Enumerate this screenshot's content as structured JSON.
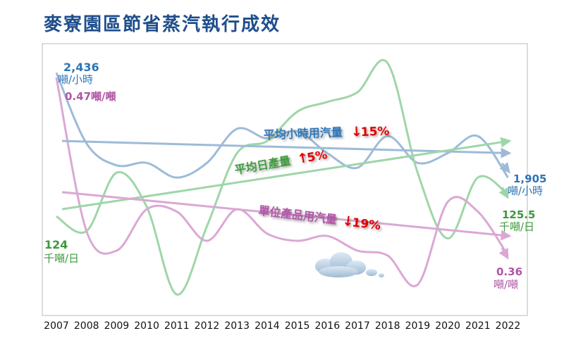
{
  "title": "麥寮園區節省蒸汽執行成效",
  "colors": {
    "blue": "#2e75b6",
    "blue_line": "#9dbbd8",
    "green": "#3c9a3c",
    "green_line": "#9ed6a9",
    "purple": "#b055a5",
    "purple_line": "#dba8d4",
    "red": "#e00000"
  },
  "chart_data": {
    "type": "line",
    "categories": [
      "2007",
      "2008",
      "2009",
      "2010",
      "2011",
      "2012",
      "2013",
      "2014",
      "2015",
      "2016",
      "2017",
      "2018",
      "2019",
      "2020",
      "2021",
      "2022"
    ],
    "y_range": [
      0,
      1
    ],
    "grid": false,
    "legend": "none",
    "y_axis_labels_shown": false,
    "series": [
      {
        "key": "steam_per_hour",
        "color": "#9dbbd8",
        "values": [
          0.95,
          0.66,
          0.57,
          0.58,
          0.52,
          0.58,
          0.72,
          0.68,
          0.71,
          0.62,
          0.56,
          0.69,
          0.58,
          0.62,
          0.69,
          0.52
        ]
      },
      {
        "key": "daily_output",
        "color": "#9ed6a9",
        "values": [
          0.36,
          0.3,
          0.54,
          0.4,
          0.04,
          0.32,
          0.62,
          0.67,
          0.79,
          0.83,
          0.87,
          0.99,
          0.54,
          0.27,
          0.52,
          0.45
        ]
      },
      {
        "key": "steam_per_product",
        "color": "#dba8d4",
        "values": [
          0.93,
          0.3,
          0.22,
          0.39,
          0.38,
          0.26,
          0.39,
          0.29,
          0.26,
          0.28,
          0.22,
          0.2,
          0.08,
          0.42,
          0.38,
          0.2
        ]
      }
    ],
    "trend_lines": [
      {
        "key": "blue_trend",
        "color": "#9dbbd8",
        "start_value": 0.67,
        "end_value": 0.62
      },
      {
        "key": "green_trend",
        "color": "#9ed6a9",
        "start_value": 0.39,
        "end_value": 0.67
      },
      {
        "key": "purple_trend",
        "color": "#dba8d4",
        "start_value": 0.46,
        "end_value": 0.28
      }
    ],
    "annotations": {
      "blue_start_value": "2,436",
      "blue_start_unit": "噸/小時",
      "blue_end_value": "1,905",
      "blue_end_unit": "噸/小時",
      "purple_start_text": "0.47噸/噸",
      "purple_end_value": "0.36",
      "purple_end_unit": "噸/噸",
      "green_start_value": "124",
      "green_start_unit": "千噸/日",
      "green_end_value": "125.5",
      "green_end_unit": "千噸/日",
      "label_steam_per_hour": "平均小時用汽量",
      "pct_steam_per_hour": "15%",
      "label_daily_output": "平均日產量",
      "pct_daily_output": "5%",
      "label_steam_per_product": "單位產品用汽量",
      "pct_steam_per_product": "19%"
    }
  }
}
